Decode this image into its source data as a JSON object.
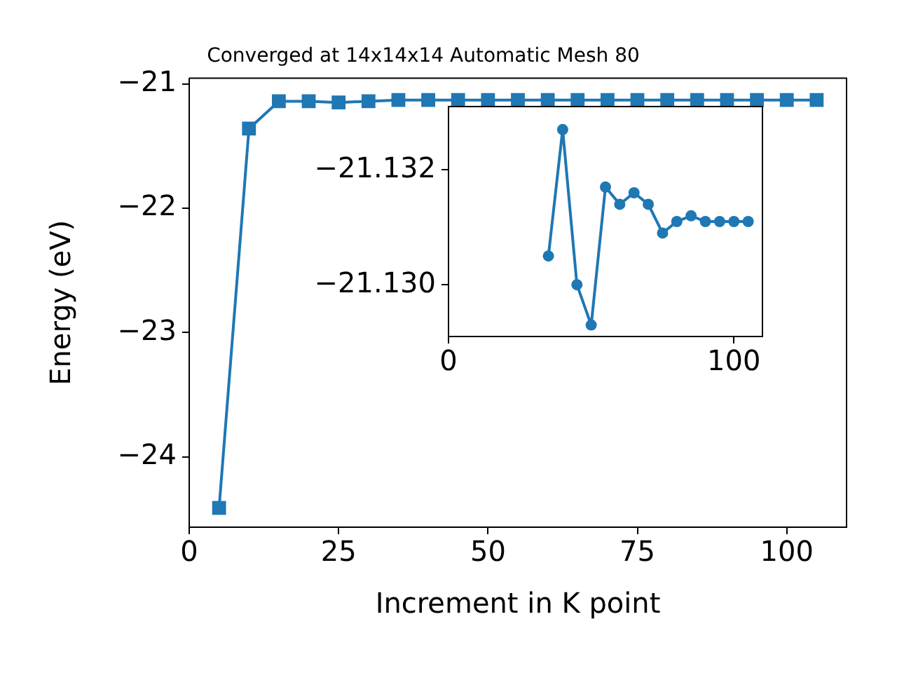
{
  "chart_data": [
    {
      "type": "line",
      "title": "Converged at 14x14x14 Automatic Mesh 80",
      "xlabel": "Increment in K point",
      "ylabel": "Energy (eV)",
      "x": [
        5,
        10,
        15,
        20,
        25,
        30,
        35,
        40,
        45,
        50,
        55,
        60,
        65,
        70,
        75,
        80,
        85,
        90,
        95,
        100,
        105
      ],
      "series": [
        {
          "color": "#1f77b4",
          "values": [
            -24.41,
            -21.36,
            -21.14,
            -21.14,
            -21.15,
            -21.14,
            -21.13,
            -21.13,
            -21.13,
            -21.13,
            -21.13,
            -21.13,
            -21.13,
            -21.13,
            -21.13,
            -21.13,
            -21.13,
            -21.13,
            -21.13,
            -21.13,
            -21.13
          ]
        }
      ],
      "xlim": [
        0,
        110
      ],
      "xticks": [
        0,
        25,
        50,
        75,
        100
      ],
      "ylim": [
        -24.565,
        -20.955
      ],
      "yticks": [
        {
          "value": -24,
          "label": "−24"
        },
        {
          "value": -23,
          "label": "−23"
        },
        {
          "value": -22,
          "label": "−22"
        },
        {
          "value": -21,
          "label": "−21"
        }
      ],
      "grid": false,
      "legend": false,
      "marker": "square"
    },
    {
      "type": "line",
      "x": [
        35,
        40,
        45,
        50,
        55,
        60,
        65,
        70,
        75,
        80,
        85,
        90,
        95,
        100,
        105
      ],
      "series": [
        {
          "color": "#1f77b4",
          "values": [
            -21.1305,
            -21.1327,
            -21.13,
            -21.1293,
            -21.1317,
            -21.1314,
            -21.1316,
            -21.1314,
            -21.1309,
            -21.1311,
            -21.1312,
            -21.1311,
            -21.1311,
            -21.1311,
            -21.1311
          ]
        }
      ],
      "xlim": [
        0,
        110
      ],
      "xticks": [
        0,
        100
      ],
      "ylim": [
        -21.1291,
        -21.1331
      ],
      "yticks": [
        {
          "value": -21.132,
          "label": "−21.132"
        },
        {
          "value": -21.13,
          "label": "−21.130"
        }
      ],
      "grid": false,
      "legend": false,
      "marker": "circle"
    }
  ]
}
